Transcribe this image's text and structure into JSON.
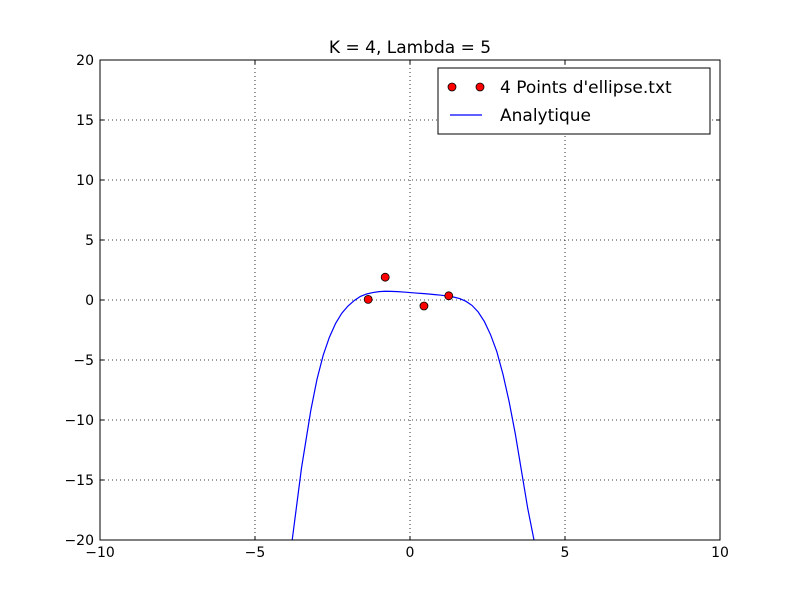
{
  "chart_data": {
    "type": "line",
    "title": "K = 4, Lambda = 5",
    "xlabel": "",
    "ylabel": "",
    "xlim": [
      -10,
      10
    ],
    "ylim": [
      -20,
      20
    ],
    "xticks": [
      -10,
      -5,
      0,
      5,
      10
    ],
    "yticks": [
      -20,
      -15,
      -10,
      -5,
      0,
      5,
      10,
      15,
      20
    ],
    "xtick_labels": [
      "−10",
      "−5",
      "0",
      "5",
      "10"
    ],
    "ytick_labels": [
      "−20",
      "−15",
      "−10",
      "−5",
      "0",
      "5",
      "10",
      "15",
      "20"
    ],
    "grid": true,
    "legend_position": "top-right",
    "series": [
      {
        "name": "4 Points d'ellipse.txt",
        "kind": "scatter",
        "color": "#ff0000",
        "x": [
          -1.35,
          -0.8,
          0.45,
          1.25
        ],
        "y": [
          0.05,
          1.9,
          -0.5,
          0.35
        ]
      },
      {
        "name": "Analytique",
        "kind": "line",
        "color": "#0000ff",
        "x": [
          -3.8,
          -3.5,
          -3.2,
          -3.0,
          -2.8,
          -2.6,
          -2.4,
          -2.2,
          -2.0,
          -1.8,
          -1.6,
          -1.4,
          -1.2,
          -1.0,
          -0.8,
          -0.6,
          -0.4,
          -0.2,
          0.0,
          0.2,
          0.4,
          0.6,
          0.8,
          1.0,
          1.2,
          1.4,
          1.6,
          1.8,
          2.0,
          2.2,
          2.4,
          2.6,
          2.8,
          3.0,
          3.2,
          3.4,
          3.6,
          3.8,
          4.0
        ],
        "y": [
          -20.0,
          -14.0,
          -9.2,
          -6.6,
          -4.6,
          -3.1,
          -1.95,
          -1.1,
          -0.5,
          -0.05,
          0.3,
          0.5,
          0.62,
          0.7,
          0.73,
          0.72,
          0.7,
          0.66,
          0.62,
          0.58,
          0.54,
          0.5,
          0.45,
          0.4,
          0.33,
          0.25,
          0.12,
          -0.1,
          -0.45,
          -1.0,
          -1.8,
          -2.9,
          -4.3,
          -6.2,
          -8.5,
          -11.2,
          -14.3,
          -17.4,
          -20.0
        ]
      }
    ]
  }
}
